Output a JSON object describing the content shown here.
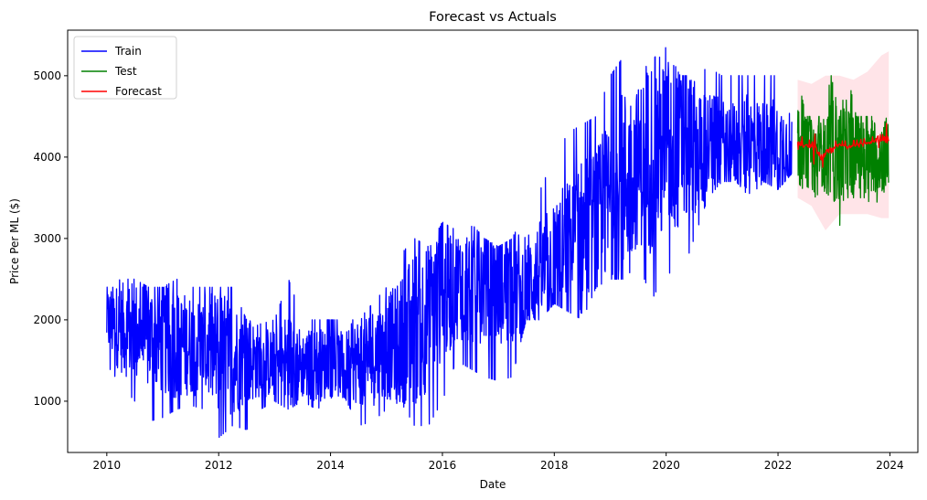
{
  "chart_data": {
    "type": "line",
    "title": "Forecast vs Actuals",
    "xlabel": "Date",
    "ylabel": "Price Per ML ($)",
    "xlim": [
      2009.3,
      2024.5
    ],
    "ylim": [
      370,
      5560
    ],
    "xticks": [
      2010,
      2012,
      2014,
      2016,
      2018,
      2020,
      2022,
      2024
    ],
    "xtick_labels": [
      "2010",
      "2012",
      "2014",
      "2016",
      "2018",
      "2020",
      "2022",
      "2024"
    ],
    "yticks": [
      1000,
      2000,
      3000,
      4000,
      5000
    ],
    "ytick_labels": [
      "1000",
      "2000",
      "3000",
      "4000",
      "5000"
    ],
    "legend_position": "top-left",
    "legend": [
      "Train",
      "Test",
      "Forecast"
    ],
    "colors": {
      "train": "#0000ff",
      "test": "#008000",
      "forecast": "#ff0000",
      "confidence_band": "#ffe4e8"
    },
    "series": [
      {
        "name": "Train",
        "color": "#0000ff",
        "x": [
          2010.0,
          2010.25,
          2010.5,
          2010.75,
          2011.0,
          2011.25,
          2011.5,
          2011.75,
          2012.0,
          2012.25,
          2012.5,
          2012.75,
          2013.0,
          2013.25,
          2013.5,
          2013.75,
          2014.0,
          2014.25,
          2014.5,
          2014.75,
          2015.0,
          2015.25,
          2015.5,
          2015.75,
          2016.0,
          2016.25,
          2016.5,
          2016.75,
          2017.0,
          2017.25,
          2017.5,
          2017.75,
          2018.0,
          2018.25,
          2018.5,
          2018.75,
          2019.0,
          2019.25,
          2019.5,
          2019.75,
          2020.0,
          2020.25,
          2020.5,
          2020.75,
          2021.0,
          2021.25,
          2021.5,
          2021.75,
          2022.0,
          2022.25
        ],
        "values": [
          2000,
          1900,
          1850,
          1800,
          1750,
          1700,
          1700,
          1650,
          1600,
          1550,
          1500,
          1500,
          1450,
          1450,
          1450,
          1450,
          1450,
          1450,
          1500,
          1550,
          1650,
          1750,
          1900,
          2050,
          2300,
          2450,
          2450,
          2450,
          2400,
          2400,
          2450,
          2550,
          2700,
          2850,
          3000,
          3200,
          3450,
          3700,
          3900,
          4050,
          4100,
          4150,
          4150,
          4150,
          4150,
          4150,
          4150,
          4150,
          4150,
          4150
        ],
        "low": [
          1450,
          1200,
          1000,
          750,
          800,
          900,
          950,
          900,
          550,
          700,
          650,
          900,
          1000,
          900,
          1000,
          900,
          1000,
          1050,
          700,
          750,
          900,
          1000,
          700,
          700,
          1000,
          1500,
          1400,
          1300,
          1250,
          1300,
          2000,
          2000,
          2200,
          2100,
          2000,
          2400,
          2500,
          2500,
          2700,
          2250,
          2600,
          2500,
          3000,
          3500,
          3700,
          3700,
          3500,
          3700,
          3600,
          3800
        ],
        "high": [
          2400,
          2500,
          2500,
          2400,
          2400,
          2500,
          2400,
          2400,
          2400,
          2400,
          2000,
          1950,
          2000,
          2500,
          2000,
          2000,
          2000,
          2000,
          2000,
          2200,
          2400,
          2800,
          3000,
          2900,
          3200,
          3100,
          3200,
          3000,
          2900,
          3000,
          3400,
          3600,
          4000,
          4300,
          4400,
          4500,
          5000,
          5250,
          5000,
          5200,
          5350,
          5000,
          5000,
          5100,
          5000,
          5000,
          5000,
          5000,
          5000,
          4900
        ]
      },
      {
        "name": "Test",
        "color": "#008000",
        "x": [
          2022.35,
          2022.5,
          2022.65,
          2022.8,
          2022.95,
          2023.1,
          2023.25,
          2023.4,
          2023.55,
          2023.7,
          2023.85,
          2023.98
        ],
        "values": [
          4100,
          4050,
          4000,
          4050,
          4100,
          4000,
          4050,
          4100,
          4000,
          4050,
          4000,
          4100
        ],
        "low": [
          3700,
          3550,
          3500,
          3600,
          3500,
          3150,
          3500,
          3500,
          3500,
          3400,
          3500,
          3700
        ],
        "high": [
          5000,
          4500,
          4500,
          4500,
          5000,
          4500,
          5000,
          4500,
          4500,
          4500,
          4500,
          4650
        ]
      },
      {
        "name": "Forecast",
        "color": "#ff0000",
        "x": [
          2022.35,
          2022.45,
          2022.55,
          2022.65,
          2022.75,
          2022.85,
          2022.95,
          2023.1,
          2023.3,
          2023.5,
          2023.7,
          2023.85,
          2023.98
        ],
        "values": [
          4180,
          4150,
          4120,
          4150,
          4000,
          4050,
          4100,
          4150,
          4130,
          4170,
          4180,
          4250,
          4200
        ],
        "low": [
          4100,
          4050,
          4050,
          3900,
          3800,
          3950,
          4050,
          4100,
          4100,
          4130,
          4150,
          4100,
          4150
        ],
        "high": [
          4250,
          4250,
          4200,
          4300,
          4150,
          4150,
          4200,
          4200,
          4200,
          4220,
          4250,
          4400,
          4420
        ]
      }
    ],
    "confidence_band": {
      "x": [
        2022.35,
        2022.6,
        2022.85,
        2023.1,
        2023.35,
        2023.6,
        2023.85,
        2023.98
      ],
      "upper": [
        4950,
        4900,
        5000,
        5000,
        4950,
        5050,
        5250,
        5300
      ],
      "lower": [
        3500,
        3400,
        3100,
        3300,
        3300,
        3300,
        3250,
        3250
      ]
    }
  }
}
